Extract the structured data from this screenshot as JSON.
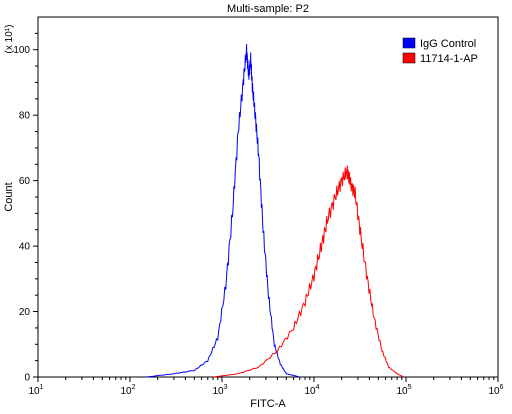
{
  "chart_data": {
    "type": "line",
    "title": "Multi-sample: P2",
    "xlabel": "FITC-A",
    "ylabel": "Count",
    "y_multiplier": "(x 10¹)",
    "x_scale": "log",
    "xlim": [
      10,
      1000000
    ],
    "ylim": [
      0,
      110
    ],
    "x_ticks": [
      {
        "value": 10,
        "base": "10",
        "exp": "1"
      },
      {
        "value": 100,
        "base": "10",
        "exp": "2"
      },
      {
        "value": 1000,
        "base": "10",
        "exp": "3"
      },
      {
        "value": 10000,
        "base": "10",
        "exp": "4"
      },
      {
        "value": 100000,
        "base": "10",
        "exp": "5"
      },
      {
        "value": 1000000,
        "base": "10",
        "exp": "6"
      }
    ],
    "y_ticks": [
      {
        "value": 0,
        "label": "0"
      },
      {
        "value": 20,
        "label": "20"
      },
      {
        "value": 40,
        "label": "40"
      },
      {
        "value": 60,
        "label": "60"
      },
      {
        "value": 80,
        "label": "80"
      },
      {
        "value": 100,
        "label": "100"
      }
    ],
    "legend_position": "top-right",
    "grid": false,
    "series": [
      {
        "name": "IgG Control",
        "color": "#0000ff",
        "x": [
          150,
          300,
          500,
          700,
          900,
          1100,
          1300,
          1500,
          1700,
          1850,
          1950,
          2050,
          2150,
          2300,
          2500,
          2800,
          3200,
          3700,
          4300,
          5000,
          6000,
          7000
        ],
        "y": [
          0,
          1,
          2,
          5,
          12,
          28,
          50,
          75,
          90,
          100,
          92,
          97,
          88,
          80,
          68,
          45,
          25,
          10,
          4,
          1,
          0.5,
          0
        ]
      },
      {
        "name": "11714-1-AP",
        "color": "#ff0000",
        "x": [
          800,
          1500,
          2500,
          4000,
          6000,
          8000,
          10000,
          12000,
          14000,
          17000,
          20000,
          23000,
          25000,
          28000,
          32000,
          38000,
          45000,
          55000,
          65000,
          80000,
          95000
        ],
        "y": [
          0,
          1,
          3,
          8,
          15,
          23,
          31,
          40,
          48,
          55,
          60,
          63,
          59,
          56,
          44,
          30,
          18,
          8,
          3,
          1,
          0
        ]
      }
    ]
  }
}
